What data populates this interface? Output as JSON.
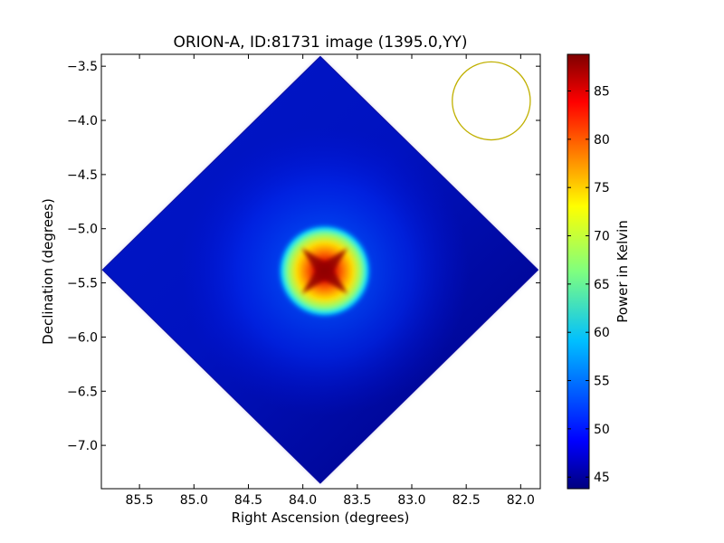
{
  "chart_data": {
    "type": "heatmap",
    "title": "ORION-A, ID:81731 image (1395.0,YY)",
    "xlabel": "Right Ascension (degrees)",
    "ylabel": "Declination (degrees)",
    "xlim": [
      85.85,
      81.82
    ],
    "ylim": [
      -7.4,
      -3.39
    ],
    "x_inverted": true,
    "xticks": [
      85.5,
      85.0,
      84.5,
      84.0,
      83.5,
      83.0,
      82.5,
      82.0
    ],
    "xtick_labels": [
      "85.5",
      "85.0",
      "84.5",
      "84.0",
      "83.5",
      "83.0",
      "82.5",
      "82.0"
    ],
    "yticks": [
      -3.5,
      -4.0,
      -4.5,
      -5.0,
      -5.5,
      -6.0,
      -6.5,
      -7.0
    ],
    "ytick_labels": [
      "−3.5",
      "−4.0",
      "−4.5",
      "−5.0",
      "−5.5",
      "−6.0",
      "−6.5",
      "−7.0"
    ],
    "colormap": "jet",
    "colorbar": {
      "label": "Power in Kelvin",
      "min": 43.8,
      "max": 88.8,
      "ticks": [
        45,
        50,
        55,
        60,
        65,
        70,
        75,
        80,
        85
      ],
      "tick_labels": [
        "45",
        "50",
        "55",
        "60",
        "65",
        "70",
        "75",
        "80",
        "85"
      ]
    },
    "map_footprint": {
      "shape": "diamond",
      "center_ra": 83.84,
      "center_dec": -5.38,
      "half_extent_ra": 2.0,
      "half_extent_dec": 1.97
    },
    "source": {
      "ra": 83.8,
      "dec": -5.39,
      "peak_kelvin": 88.5,
      "background_kelvin": 46
    },
    "beam_circle": {
      "ra": 82.27,
      "dec": -3.82,
      "radius_deg": 0.36,
      "color": "#c0b000"
    }
  }
}
